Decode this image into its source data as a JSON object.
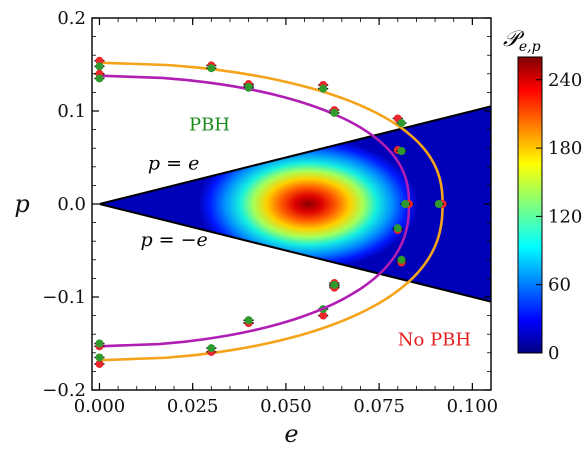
{
  "chart_data": {
    "type": "heatmap",
    "xlabel": "e",
    "ylabel": "p",
    "xlim": [
      -0.002,
      0.105
    ],
    "ylim": [
      -0.2,
      0.2
    ],
    "xticks": [
      0.0,
      0.025,
      0.05,
      0.075,
      0.1
    ],
    "xtick_labels": [
      "0.000",
      "0.025",
      "0.050",
      "0.075",
      "0.100"
    ],
    "yticks": [
      -0.2,
      -0.1,
      0.0,
      0.1,
      0.2
    ],
    "ytick_labels": [
      "−0.2",
      "−0.1",
      "0.0",
      "0.1",
      "0.2"
    ],
    "grid": false,
    "wedge": {
      "description_upper": "p = e",
      "description_lower": "p = −e",
      "e_max": 0.105
    },
    "colorbar": {
      "title": "𝒫",
      "title_sub": "e,p",
      "min": 0,
      "max": 260,
      "ticks": [
        0,
        60,
        120,
        180,
        240
      ],
      "tick_labels": [
        "0",
        "60",
        "120",
        "180",
        "240"
      ],
      "colormap": "jet"
    },
    "density_peak": {
      "e": 0.056,
      "p": 0.0,
      "value": 260
    },
    "annotations": [
      {
        "text": "PBH",
        "e": 0.024,
        "p": 0.079,
        "color": "#1a8a1a"
      },
      {
        "text": "No PBH",
        "e": 0.08,
        "p": -0.152,
        "color": "#e81c1c"
      },
      {
        "text": "p = e",
        "e": 0.013,
        "p": 0.037,
        "color": "#000000"
      },
      {
        "text": "p = −e",
        "e": 0.011,
        "p": -0.045,
        "color": "#000000"
      }
    ],
    "series": [
      {
        "color": "#f5a31a",
        "fit_curve": {
          "e_max": 0.092,
          "p_top": 0.152,
          "p_bottom": -0.168,
          "p_center": 0.0
        },
        "points_red": [
          {
            "e": 0.0,
            "p": 0.154
          },
          {
            "e": 0.03,
            "p": 0.149
          },
          {
            "e": 0.04,
            "p": 0.129
          },
          {
            "e": 0.06,
            "p": 0.128
          },
          {
            "e": 0.08,
            "p": 0.092
          },
          {
            "e": 0.092,
            "p": 0.0
          },
          {
            "e": 0.081,
            "p": -0.063
          },
          {
            "e": 0.063,
            "p": -0.085
          },
          {
            "e": 0.06,
            "p": -0.12
          },
          {
            "e": 0.04,
            "p": -0.128
          },
          {
            "e": 0.03,
            "p": -0.159
          },
          {
            "e": 0.0,
            "p": -0.172
          }
        ],
        "points_green": [
          {
            "e": 0.0,
            "p": 0.148
          },
          {
            "e": 0.03,
            "p": 0.146
          },
          {
            "e": 0.04,
            "p": 0.125
          },
          {
            "e": 0.06,
            "p": 0.124
          },
          {
            "e": 0.081,
            "p": 0.087
          },
          {
            "e": 0.091,
            "p": 0.0
          },
          {
            "e": 0.081,
            "p": -0.06
          },
          {
            "e": 0.063,
            "p": -0.088
          },
          {
            "e": 0.06,
            "p": -0.113
          },
          {
            "e": 0.04,
            "p": -0.125
          },
          {
            "e": 0.03,
            "p": -0.155
          },
          {
            "e": 0.0,
            "p": -0.165
          }
        ]
      },
      {
        "color": "#b01eb4",
        "fit_curve": {
          "e_max": 0.083,
          "p_top": 0.138,
          "p_bottom": -0.153,
          "p_center": 0.0
        },
        "points_red": [
          {
            "e": 0.0,
            "p": 0.14
          },
          {
            "e": 0.04,
            "p": 0.128
          },
          {
            "e": 0.063,
            "p": 0.101
          },
          {
            "e": 0.08,
            "p": 0.058
          },
          {
            "e": 0.083,
            "p": 0.0
          },
          {
            "e": 0.08,
            "p": -0.028
          },
          {
            "e": 0.063,
            "p": -0.09
          },
          {
            "e": 0.04,
            "p": -0.128
          },
          {
            "e": 0.0,
            "p": -0.153
          }
        ],
        "points_green": [
          {
            "e": 0.0,
            "p": 0.135
          },
          {
            "e": 0.04,
            "p": 0.126
          },
          {
            "e": 0.063,
            "p": 0.098
          },
          {
            "e": 0.081,
            "p": 0.057
          },
          {
            "e": 0.082,
            "p": 0.0
          },
          {
            "e": 0.08,
            "p": -0.026
          },
          {
            "e": 0.063,
            "p": -0.087
          },
          {
            "e": 0.04,
            "p": -0.125
          },
          {
            "e": 0.0,
            "p": -0.15
          }
        ]
      }
    ]
  }
}
